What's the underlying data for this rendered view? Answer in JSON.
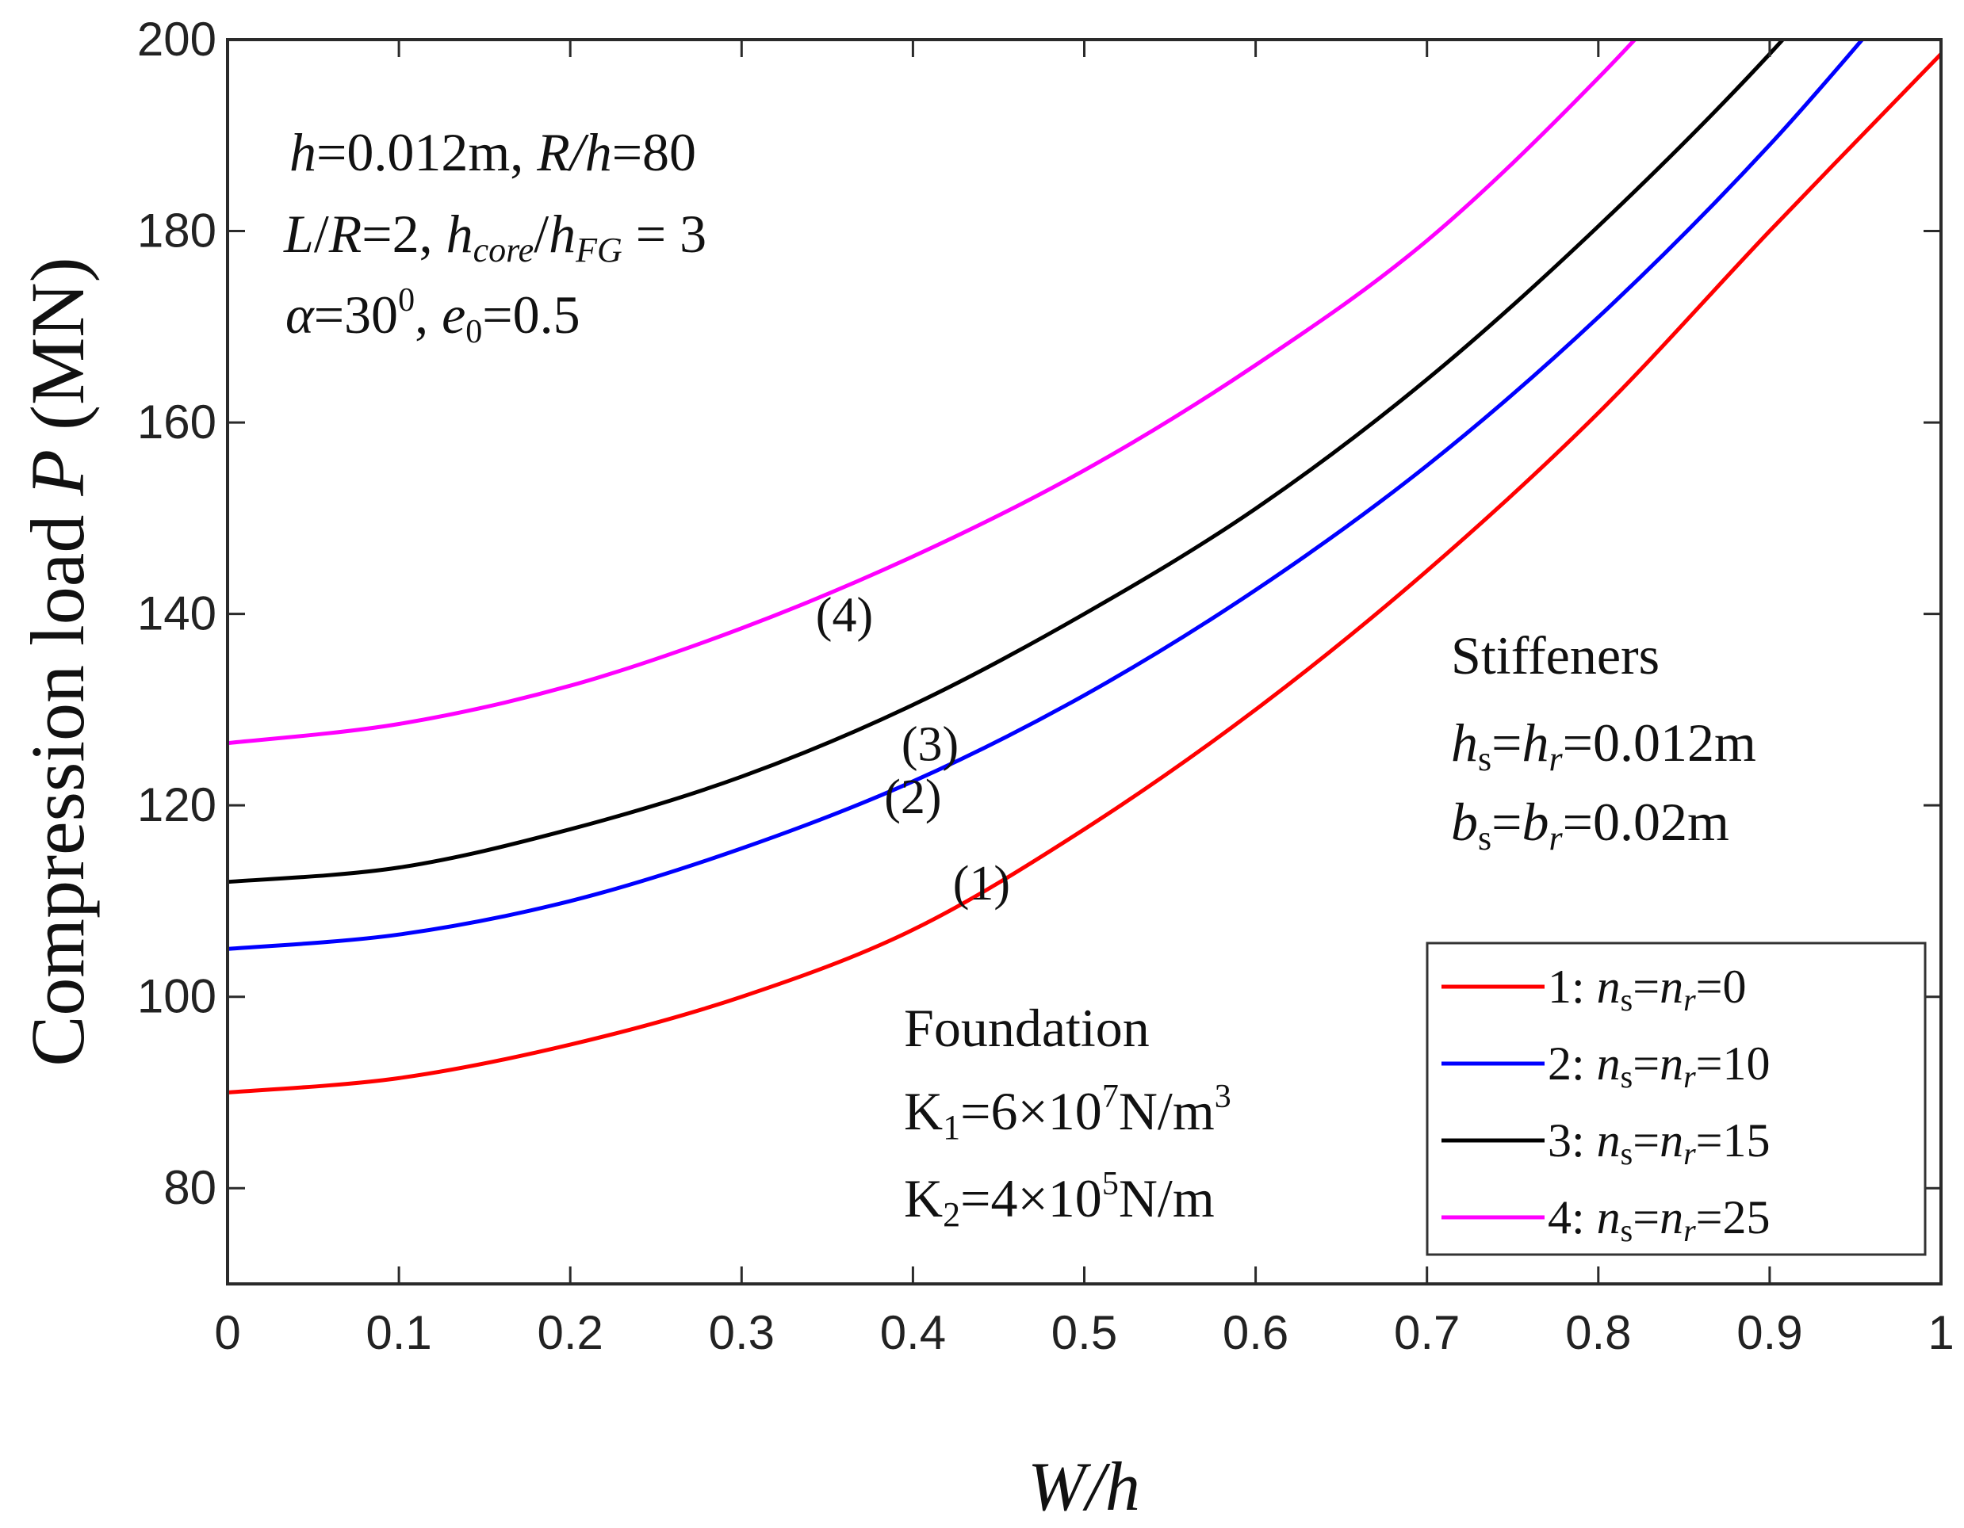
{
  "chart_data": {
    "type": "line",
    "xlabel": "W/h",
    "ylabel": "Compression load P (MN)",
    "xlim": [
      0,
      1
    ],
    "ylim": [
      70,
      200
    ],
    "xticks": [
      "0",
      "0.1",
      "0.2",
      "0.3",
      "0.4",
      "0.5",
      "0.6",
      "0.7",
      "0.8",
      "0.9",
      "1"
    ],
    "yticks": [
      "80",
      "100",
      "120",
      "140",
      "160",
      "180",
      "200"
    ],
    "x": [
      0,
      0.1,
      0.2,
      0.3,
      0.4,
      0.5,
      0.6,
      0.7,
      0.8,
      0.9,
      1.0
    ],
    "series": [
      {
        "name": "1: ns=nr=0",
        "legend_label": "1:",
        "ns_nr": "=0",
        "color": "#ff0000",
        "curve_label": "(1)",
        "values": [
          90,
          91.5,
          95,
          100,
          107,
          117.5,
          130,
          144.5,
          161,
          180,
          198.5
        ]
      },
      {
        "name": "2: ns=nr=10",
        "legend_label": "2:",
        "ns_nr": "=10",
        "color": "#0000ff",
        "curve_label": "(2)",
        "values": [
          105,
          106.5,
          110,
          115.5,
          122.5,
          131.5,
          142.5,
          155.5,
          171,
          189,
          null
        ]
      },
      {
        "name": "3: ns=nr=15",
        "legend_label": "3:",
        "ns_nr": "=15",
        "color": "#000000",
        "curve_label": "(3)",
        "values": [
          112,
          113.5,
          117.5,
          123,
          130.5,
          140,
          151,
          164.5,
          180.5,
          198.5,
          null
        ]
      },
      {
        "name": "4: ns=nr=25",
        "legend_label": "4:",
        "ns_nr": "=25",
        "color": "#ff00ff",
        "curve_label": "(4)",
        "values": [
          126.5,
          128.5,
          132.5,
          138.5,
          146,
          155,
          166,
          179,
          196,
          null,
          null
        ]
      }
    ],
    "annotations": {
      "params": {
        "line1": {
          "h": "h",
          "hval": "=0.012m, ",
          "R": "R",
          "h2": "/h",
          "rest": "=80"
        },
        "line2": {
          "L": "L",
          "sl": "/",
          "R": "R",
          "eq": "=2, ",
          "hc": "h",
          "hc_sub": "core",
          "sl2": "/",
          "hf": "h",
          "hf_sub": "FG",
          "eq2": " = 3"
        },
        "line3": {
          "alpha": "α",
          "eq": "=30",
          "sup": "0",
          "comma": ", ",
          "e": "e",
          "e_sub": "0",
          "eq2": "=0.5"
        }
      },
      "stiffeners": {
        "title": "Stiffeners",
        "line1": {
          "a": "h",
          "a_sub": "s",
          "b": "h",
          "b_sub": "r",
          "val": "=0.012m"
        },
        "line2": {
          "a": "b",
          "a_sub": "s",
          "b": "b",
          "b_sub": "r",
          "val": "=0.02m"
        }
      },
      "foundation": {
        "title": "Foundation",
        "line1": {
          "k": "K",
          "k_sub": "1",
          "val": "=6×10",
          "sup": "7",
          "unit": "N/m",
          "unit_sup": "3"
        },
        "line2": {
          "k": "K",
          "k_sub": "2",
          "val": "=4×10",
          "sup": "5",
          "unit": "N/m"
        }
      }
    },
    "legend": {
      "position": "bottom-right",
      "n": "n",
      "s": "s",
      "r": "r",
      "eq": "="
    }
  }
}
